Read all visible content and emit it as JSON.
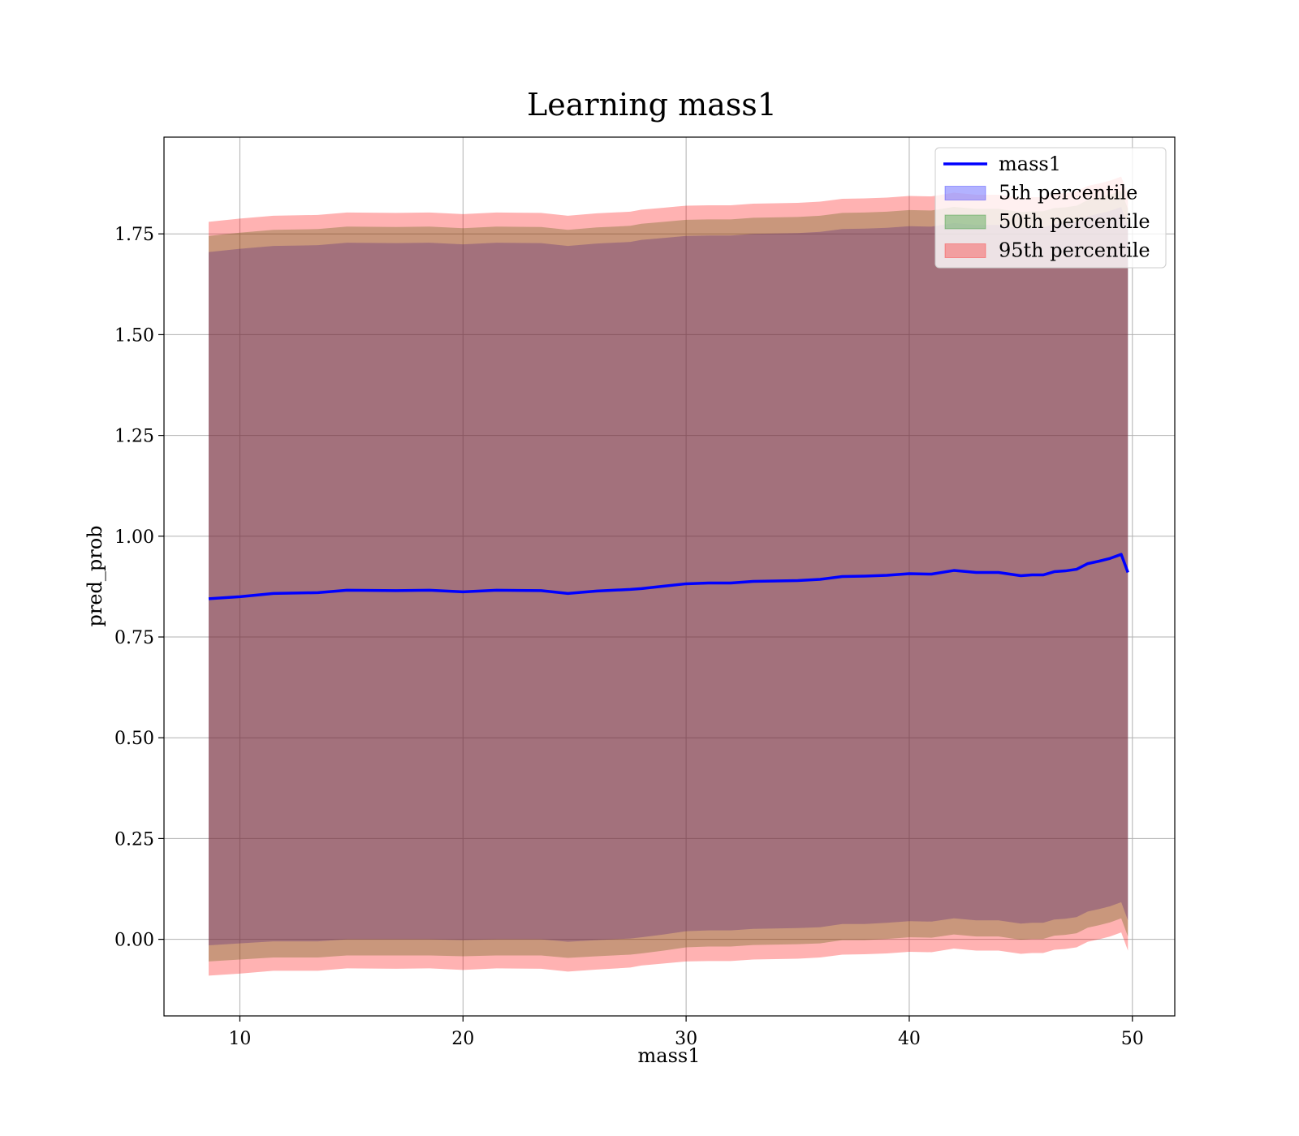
{
  "chart_data": {
    "type": "line",
    "title": "Learning mass1",
    "xlabel": "mass1",
    "ylabel": "pred_prob",
    "xlim": [
      6.6,
      51.9
    ],
    "ylim": [
      -0.19,
      1.99
    ],
    "xticks": [
      10,
      20,
      30,
      40,
      50
    ],
    "yticks": [
      0.0,
      0.25,
      0.5,
      0.75,
      1.0,
      1.25,
      1.5,
      1.75
    ],
    "xtick_labels": [
      "10",
      "20",
      "30",
      "40",
      "50"
    ],
    "ytick_labels": [
      "0.00",
      "0.25",
      "0.50",
      "0.75",
      "1.00",
      "1.25",
      "1.50",
      "1.75"
    ],
    "grid": true,
    "legend_position": "top-right",
    "x": [
      8.6,
      10,
      11.5,
      13.5,
      14.8,
      17,
      18.5,
      20,
      21.5,
      23.5,
      24.7,
      26,
      27.5,
      28,
      29,
      30,
      31,
      32,
      33,
      34,
      35,
      36,
      37,
      38,
      39,
      40,
      41,
      42,
      43,
      44,
      45,
      45.5,
      46,
      46.5,
      47,
      47.5,
      48,
      48.5,
      49,
      49.5,
      49.8
    ],
    "line": {
      "name": "mass1",
      "color": "#0000ff",
      "y": [
        0.845,
        0.85,
        0.858,
        0.86,
        0.866,
        0.865,
        0.866,
        0.862,
        0.866,
        0.865,
        0.858,
        0.864,
        0.868,
        0.87,
        0.876,
        0.882,
        0.884,
        0.884,
        0.888,
        0.889,
        0.89,
        0.893,
        0.9,
        0.901,
        0.903,
        0.907,
        0.906,
        0.915,
        0.91,
        0.91,
        0.902,
        0.904,
        0.904,
        0.912,
        0.914,
        0.918,
        0.932,
        0.938,
        0.945,
        0.955,
        0.91
      ]
    },
    "series": [
      {
        "name": "5th percentile",
        "color": "#0000ff",
        "lower": [
          -0.015,
          -0.01,
          -0.005,
          -0.005,
          0.0,
          0.0,
          0.0,
          -0.002,
          0.0,
          0.0,
          -0.006,
          -0.002,
          0.002,
          0.005,
          0.012,
          0.02,
          0.022,
          0.022,
          0.026,
          0.027,
          0.028,
          0.03,
          0.038,
          0.038,
          0.041,
          0.045,
          0.044,
          0.052,
          0.047,
          0.047,
          0.039,
          0.041,
          0.041,
          0.049,
          0.051,
          0.055,
          0.069,
          0.075,
          0.082,
          0.092,
          0.047
        ],
        "upper": [
          1.705,
          1.713,
          1.72,
          1.722,
          1.728,
          1.727,
          1.728,
          1.724,
          1.728,
          1.727,
          1.72,
          1.726,
          1.73,
          1.735,
          1.74,
          1.745,
          1.746,
          1.746,
          1.75,
          1.751,
          1.752,
          1.755,
          1.762,
          1.763,
          1.765,
          1.769,
          1.768,
          1.777,
          1.772,
          1.772,
          1.764,
          1.766,
          1.766,
          1.774,
          1.776,
          1.78,
          1.794,
          1.8,
          1.807,
          1.817,
          1.772
        ]
      },
      {
        "name": "50th percentile",
        "color": "#008000",
        "lower": [
          -0.055,
          -0.05,
          -0.045,
          -0.045,
          -0.04,
          -0.04,
          -0.04,
          -0.042,
          -0.04,
          -0.04,
          -0.046,
          -0.042,
          -0.038,
          -0.035,
          -0.028,
          -0.02,
          -0.018,
          -0.018,
          -0.014,
          -0.013,
          -0.012,
          -0.01,
          -0.002,
          -0.002,
          0.001,
          0.005,
          0.004,
          0.012,
          0.007,
          0.007,
          -0.001,
          0.001,
          0.001,
          0.009,
          0.011,
          0.015,
          0.029,
          0.035,
          0.042,
          0.052,
          0.007
        ],
        "upper": [
          1.745,
          1.753,
          1.76,
          1.762,
          1.768,
          1.767,
          1.768,
          1.764,
          1.768,
          1.767,
          1.76,
          1.766,
          1.77,
          1.775,
          1.78,
          1.785,
          1.786,
          1.786,
          1.79,
          1.791,
          1.792,
          1.795,
          1.802,
          1.803,
          1.805,
          1.809,
          1.808,
          1.817,
          1.812,
          1.812,
          1.804,
          1.806,
          1.806,
          1.814,
          1.816,
          1.82,
          1.834,
          1.84,
          1.847,
          1.857,
          1.812
        ]
      },
      {
        "name": "95th percentile",
        "color": "#ff0000",
        "lower": [
          -0.09,
          -0.085,
          -0.078,
          -0.078,
          -0.072,
          -0.073,
          -0.072,
          -0.076,
          -0.072,
          -0.073,
          -0.08,
          -0.075,
          -0.07,
          -0.065,
          -0.06,
          -0.055,
          -0.054,
          -0.054,
          -0.05,
          -0.049,
          -0.048,
          -0.045,
          -0.038,
          -0.037,
          -0.035,
          -0.031,
          -0.032,
          -0.023,
          -0.028,
          -0.028,
          -0.036,
          -0.034,
          -0.034,
          -0.026,
          -0.024,
          -0.02,
          -0.006,
          0.0,
          0.007,
          0.017,
          -0.028
        ],
        "upper": [
          1.78,
          1.788,
          1.795,
          1.797,
          1.803,
          1.802,
          1.803,
          1.799,
          1.803,
          1.802,
          1.795,
          1.801,
          1.805,
          1.81,
          1.815,
          1.82,
          1.821,
          1.821,
          1.825,
          1.826,
          1.827,
          1.83,
          1.837,
          1.838,
          1.84,
          1.844,
          1.843,
          1.852,
          1.847,
          1.847,
          1.839,
          1.841,
          1.841,
          1.849,
          1.851,
          1.855,
          1.869,
          1.875,
          1.882,
          1.892,
          1.847
        ]
      }
    ]
  }
}
